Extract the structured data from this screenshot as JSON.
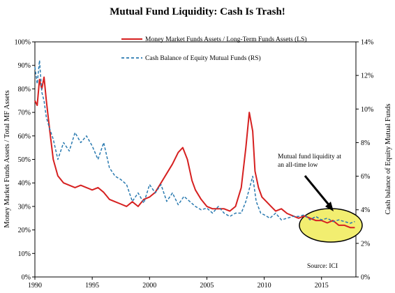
{
  "chart_data": {
    "type": "line",
    "title": "Mutual Fund Liquidity: Cash Is Trash!",
    "ylabel_left": "Money Market Funds Assets / Total MF Assets",
    "ylabel_right": "Cash balance of Equity Mutual Funds",
    "x_ticks": [
      "1990",
      "1995",
      "2000",
      "2005",
      "2010",
      "2015"
    ],
    "y_left_ticks": [
      "0%",
      "10%",
      "20%",
      "30%",
      "40%",
      "50%",
      "60%",
      "70%",
      "80%",
      "90%",
      "100%"
    ],
    "y_right_ticks": [
      "0%",
      "2%",
      "4%",
      "6%",
      "8%",
      "10%",
      "12%",
      "14%"
    ],
    "xlim": [
      1990,
      2018
    ],
    "ylim_left": [
      0,
      100
    ],
    "ylim_right": [
      0,
      14
    ],
    "legend_placement": "top-center",
    "series": [
      {
        "name": "Money Market Funds Assets / Long-Term Funds Assets (LS)",
        "axis": "left",
        "color": "#d62020",
        "style": "solid",
        "x": [
          1990.0,
          1990.2,
          1990.4,
          1990.6,
          1990.8,
          1991.0,
          1991.3,
          1991.6,
          1992.0,
          1992.5,
          1993.0,
          1993.5,
          1994.0,
          1994.5,
          1995.0,
          1995.5,
          1996.0,
          1996.5,
          1997.0,
          1997.5,
          1998.0,
          1998.5,
          1999.0,
          1999.5,
          2000.0,
          2000.5,
          2001.0,
          2001.5,
          2002.0,
          2002.5,
          2002.9,
          2003.3,
          2003.7,
          2004.0,
          2004.5,
          2005.0,
          2005.5,
          2006.0,
          2006.5,
          2007.0,
          2007.5,
          2008.0,
          2008.4,
          2008.7,
          2009.0,
          2009.2,
          2009.5,
          2009.8,
          2010.2,
          2010.6,
          2011.0,
          2011.5,
          2012.0,
          2012.5,
          2013.0,
          2013.5,
          2014.0,
          2014.5,
          2015.0,
          2015.5,
          2016.0,
          2016.5,
          2017.0,
          2017.5,
          2017.9
        ],
        "y": [
          75,
          73,
          84,
          80,
          85,
          75,
          62,
          50,
          43,
          40,
          39,
          38,
          39,
          38,
          37,
          38,
          36,
          33,
          32,
          31,
          30,
          32,
          30,
          33,
          34,
          36,
          40,
          44,
          48,
          53,
          55,
          50,
          41,
          37,
          33,
          30,
          29,
          29,
          29,
          28,
          30,
          38,
          55,
          70,
          62,
          45,
          38,
          34,
          32,
          30,
          28,
          29,
          27,
          26,
          25,
          26,
          25,
          24,
          24,
          23,
          24,
          22,
          22,
          21,
          21
        ]
      },
      {
        "name": "Cash Balance of Equity Mutual Funds (RS)",
        "axis": "right",
        "color": "#2a7ab0",
        "style": "dashed",
        "x": [
          1990.0,
          1990.2,
          1990.4,
          1990.6,
          1990.8,
          1991.0,
          1991.3,
          1991.6,
          1992.0,
          1992.5,
          1993.0,
          1993.5,
          1994.0,
          1994.5,
          1995.0,
          1995.5,
          1996.0,
          1996.5,
          1997.0,
          1997.5,
          1998.0,
          1998.5,
          1999.0,
          1999.5,
          2000.0,
          2000.5,
          2001.0,
          2001.5,
          2002.0,
          2002.5,
          2003.0,
          2003.5,
          2004.0,
          2004.5,
          2005.0,
          2005.5,
          2006.0,
          2006.5,
          2007.0,
          2007.5,
          2008.0,
          2008.4,
          2008.8,
          2009.0,
          2009.3,
          2009.7,
          2010.0,
          2010.5,
          2011.0,
          2011.5,
          2012.0,
          2012.5,
          2013.0,
          2013.5,
          2014.0,
          2014.5,
          2015.0,
          2015.5,
          2016.0,
          2016.5,
          2017.0,
          2017.5,
          2017.9
        ],
        "y": [
          12.5,
          11.5,
          12.9,
          11.0,
          10.5,
          9.5,
          8.8,
          8.2,
          7.0,
          8.0,
          7.5,
          8.6,
          8.0,
          8.4,
          7.8,
          7.0,
          8.0,
          6.5,
          6.0,
          5.8,
          5.5,
          4.5,
          5.0,
          4.4,
          5.5,
          5.0,
          5.5,
          4.5,
          5.0,
          4.3,
          4.8,
          4.5,
          4.2,
          4.0,
          4.1,
          3.8,
          4.2,
          3.8,
          3.6,
          3.8,
          3.8,
          4.5,
          5.5,
          6.0,
          4.5,
          3.8,
          3.7,
          3.5,
          3.8,
          3.4,
          3.5,
          3.6,
          3.6,
          3.7,
          3.4,
          3.6,
          3.4,
          3.5,
          3.3,
          3.4,
          3.3,
          3.2,
          3.3
        ]
      }
    ],
    "annotation": "Mutual fund liquidity at an all-time low",
    "source": "Source: ICI"
  },
  "colors": {
    "red": "#d62020",
    "blue": "#2a7ab0",
    "highlight_fill": "#f2ee70",
    "highlight_stroke": "#000000"
  }
}
